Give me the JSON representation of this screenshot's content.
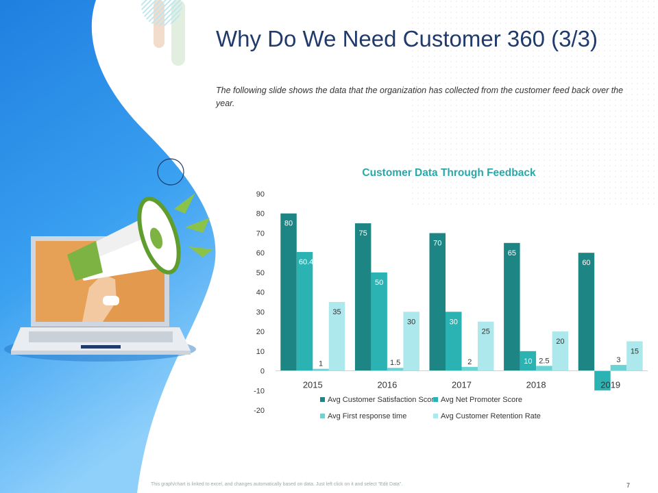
{
  "slide": {
    "title": "Why Do We Need Customer 360 (3/3)",
    "subtitle": "The following slide shows the data that the organization has collected from the customer feed back over the year.",
    "footnote": "This graph/chart is linked to excel, and changes automatically based on data. Just left click on it and select \"Edit Data\".",
    "page_number": "7"
  },
  "colors": {
    "accent_blue": "#2f8fea",
    "title_color": "#1f3a6b",
    "chart_title_color": "#2aa8a8"
  },
  "illustration": {
    "icons": [
      "megaphone-icon",
      "laptop-icon",
      "hand-icon"
    ]
  },
  "chart_data": {
    "type": "bar",
    "title": "Customer Data Through Feedback",
    "categories": [
      "2015",
      "2016",
      "2017",
      "2018",
      "2019"
    ],
    "series": [
      {
        "name": "Avg Customer Satisfaction Score",
        "color": "#1e8585",
        "values": [
          80,
          75,
          70,
          65,
          60
        ],
        "labels": [
          "80",
          "75",
          "70",
          "65",
          "60"
        ]
      },
      {
        "name": "Avg Net Promoter Score",
        "color": "#2bb3b3",
        "values": [
          60.4,
          50,
          30,
          10,
          -10
        ],
        "labels": [
          "60.4",
          "50",
          "30",
          "10",
          ""
        ]
      },
      {
        "name": "Avg First response time",
        "color": "#6ad3d3",
        "values": [
          1,
          1.5,
          2,
          2.5,
          3
        ],
        "labels": [
          "1",
          "1.5",
          "2",
          "2.5",
          "3"
        ]
      },
      {
        "name": "Avg Customer Retention Rate",
        "color": "#ade8ec",
        "values": [
          35,
          30,
          25,
          20,
          15
        ],
        "labels": [
          "35",
          "30",
          "25",
          "20",
          "15"
        ]
      }
    ],
    "ylim": [
      -20,
      90
    ],
    "yticks": [
      -20,
      -10,
      0,
      10,
      20,
      30,
      40,
      50,
      60,
      70,
      80,
      90
    ],
    "grid": false,
    "legend_position": "bottom"
  }
}
